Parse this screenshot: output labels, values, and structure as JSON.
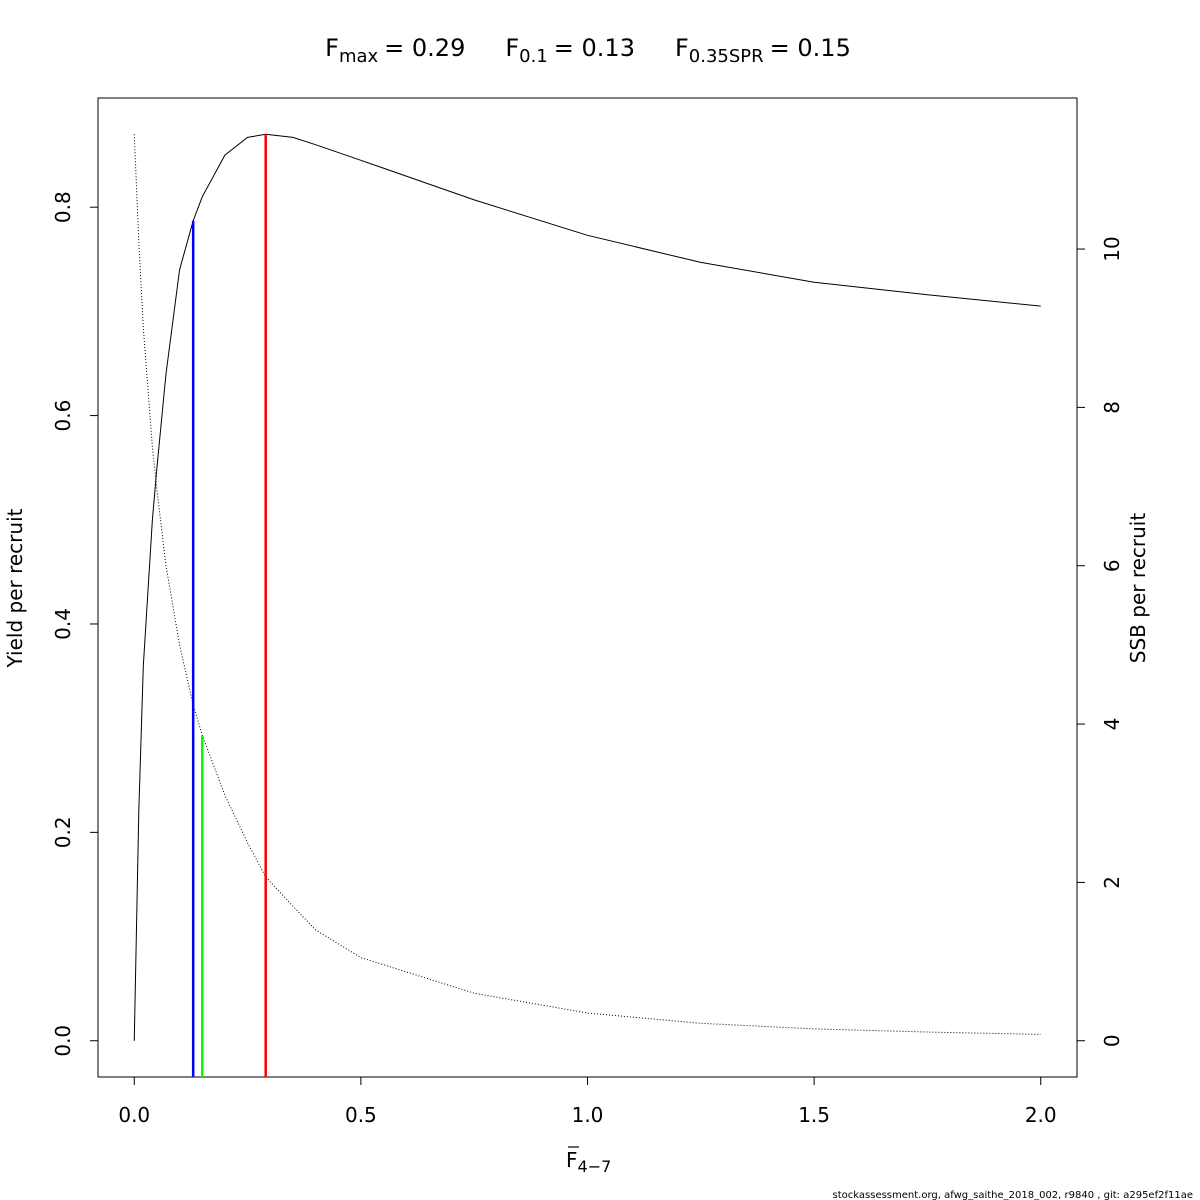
{
  "chart_data": {
    "type": "line",
    "title_parts": [
      {
        "base": "F",
        "sub": "max",
        "text": "= 0.29"
      },
      {
        "base": "F",
        "sub": "0.1",
        "text": "= 0.13"
      },
      {
        "base": "F",
        "sub": "0.35SPR",
        "text": "= 0.15"
      }
    ],
    "x_label": {
      "base": "F",
      "sub": "4−7"
    },
    "y_label": "Yield per recruit",
    "y2_label": "SSB per recruit",
    "x": [
      0,
      0.01,
      0.02,
      0.04,
      0.05,
      0.07,
      0.1,
      0.13,
      0.15,
      0.2,
      0.25,
      0.29,
      0.35,
      0.4,
      0.5,
      0.75,
      1.0,
      1.25,
      1.5,
      1.75,
      2.0
    ],
    "series": [
      {
        "color": "#000000",
        "dash": false,
        "values": [
          0,
          0.22,
          0.36,
          0.5,
          0.55,
          0.64,
          0.74,
          0.787,
          0.81,
          0.85,
          0.867,
          0.87,
          0.867,
          0.86,
          0.845,
          0.807,
          0.773,
          0.747,
          0.728,
          0.716,
          0.705
        ]
      },
      {
        "color": "#000000",
        "dash": true,
        "axis": "y2",
        "values": [
          11.45,
          10.1,
          9.0,
          7.5,
          6.96,
          6.0,
          5.0,
          4.24,
          3.86,
          3.1,
          2.5,
          2.07,
          1.7,
          1.4,
          1.05,
          0.6,
          0.35,
          0.22,
          0.15,
          0.11,
          0.08
        ]
      }
    ],
    "reference_lines": [
      {
        "x": 0.13,
        "y": 0.787,
        "color": "#0000ff"
      },
      {
        "x": 0.15,
        "y": 0.293,
        "color": "#00ff00"
      },
      {
        "x": 0.29,
        "y": 0.87,
        "color": "#ff0000"
      }
    ],
    "xlim": [
      -0.08,
      2.08
    ],
    "xticks": [
      {
        "value": 0,
        "label": "0.0"
      },
      {
        "value": 0.5,
        "label": "0.5"
      },
      {
        "value": 1,
        "label": "1.0"
      },
      {
        "value": 1.5,
        "label": "1.5"
      },
      {
        "value": 2,
        "label": "2.0"
      }
    ],
    "ylim": [
      -0.0348,
      0.9048
    ],
    "yticks": [
      {
        "value": 0,
        "label": "0.0"
      },
      0.2,
      0.4,
      0.6,
      0.8
    ],
    "y2lim": [
      -0.458,
      11.908
    ],
    "y2ticks": [
      0,
      2,
      4,
      6,
      8,
      10
    ],
    "footer": "stockassessment.org, afwg_saithe_2018_002, r9840 , git: a295ef2f11ae"
  }
}
